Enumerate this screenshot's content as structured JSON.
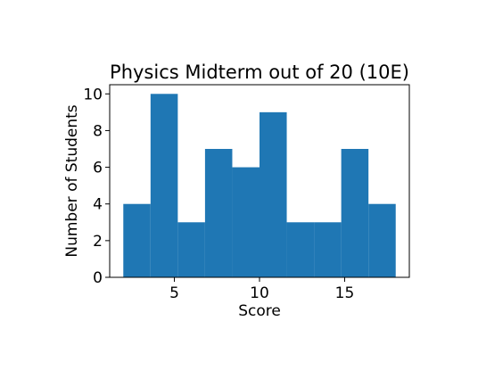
{
  "chart_data": {
    "type": "bar",
    "subtype": "histogram",
    "title": "Physics Midterm out of 20 (10E)",
    "xlabel": "Score",
    "ylabel": "Number of Students",
    "bin_edges": [
      2,
      3.6,
      5.2,
      6.8,
      8.4,
      10,
      11.6,
      13.2,
      14.8,
      16.4,
      18
    ],
    "values": [
      4,
      10,
      3,
      7,
      6,
      9,
      3,
      3,
      7,
      4
    ],
    "xlim": [
      1.2,
      18.8
    ],
    "ylim": [
      0,
      10.5
    ],
    "xticks": [
      5,
      10,
      15
    ],
    "yticks": [
      0,
      2,
      4,
      6,
      8,
      10
    ],
    "bar_color": "#1f77b4",
    "grid": false,
    "legend": "none"
  }
}
